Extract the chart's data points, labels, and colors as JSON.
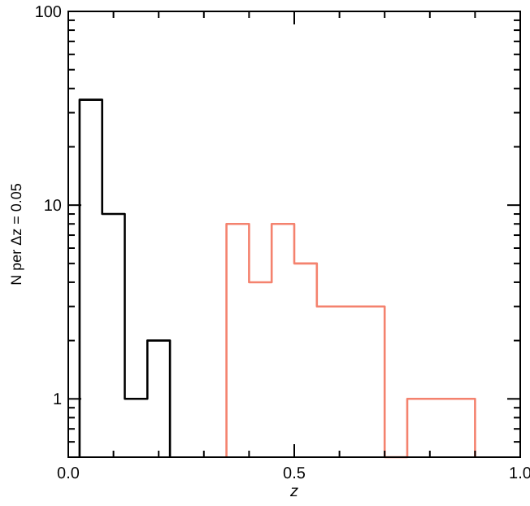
{
  "chart_data": {
    "type": "histogram",
    "xlabel": "z",
    "ylabel": "N  per Δz = 0.05",
    "bins": [
      0.35,
      0.4,
      0.45,
      0.5,
      0.55,
      0.6,
      0.65,
      0.7,
      0.75,
      0.8,
      0.85,
      0.9
    ],
    "series": [
      {
        "color": "#000000",
        "bins": [
          0.025,
          0.075,
          0.125,
          0.175,
          0.225
        ],
        "values": [
          35,
          9,
          1,
          2
        ]
      },
      {
        "color": "#f4826e",
        "values": [
          8,
          4,
          8,
          5,
          3,
          3,
          3,
          null,
          1,
          1,
          1
        ]
      }
    ],
    "xlim": [
      0,
      1
    ],
    "xticks": [
      {
        "value": 0,
        "label": "0.0"
      },
      {
        "value": 0.1,
        "label": null
      },
      {
        "value": 0.2,
        "label": null
      },
      {
        "value": 0.3,
        "label": null
      },
      {
        "value": 0.4,
        "label": null
      },
      {
        "value": 0.5,
        "label": "0.5"
      },
      {
        "value": 0.6,
        "label": null
      },
      {
        "value": 0.7,
        "label": null
      },
      {
        "value": 0.8,
        "label": null
      },
      {
        "value": 0.9,
        "label": null
      },
      {
        "value": 1,
        "label": "1.0"
      }
    ],
    "ylim": [
      0.5,
      100
    ],
    "log": "y",
    "yticks": [
      {
        "value": 0.6,
        "label": null
      },
      {
        "value": 0.7,
        "label": null
      },
      {
        "value": 0.8,
        "label": null
      },
      {
        "value": 0.9,
        "label": null
      },
      1,
      {
        "value": 2,
        "label": null
      },
      {
        "value": 3,
        "label": null
      },
      {
        "value": 4,
        "label": null
      },
      {
        "value": 5,
        "label": null
      },
      {
        "value": 6,
        "label": null
      },
      {
        "value": 7,
        "label": null
      },
      {
        "value": 8,
        "label": null
      },
      {
        "value": 9,
        "label": null
      },
      10,
      {
        "value": 20,
        "label": null
      },
      {
        "value": 30,
        "label": null
      },
      {
        "value": 40,
        "label": null
      },
      {
        "value": 50,
        "label": null
      },
      {
        "value": 60,
        "label": null
      },
      {
        "value": 70,
        "label": null
      },
      {
        "value": 80,
        "label": null
      },
      {
        "value": 90,
        "label": null
      },
      100
    ]
  }
}
